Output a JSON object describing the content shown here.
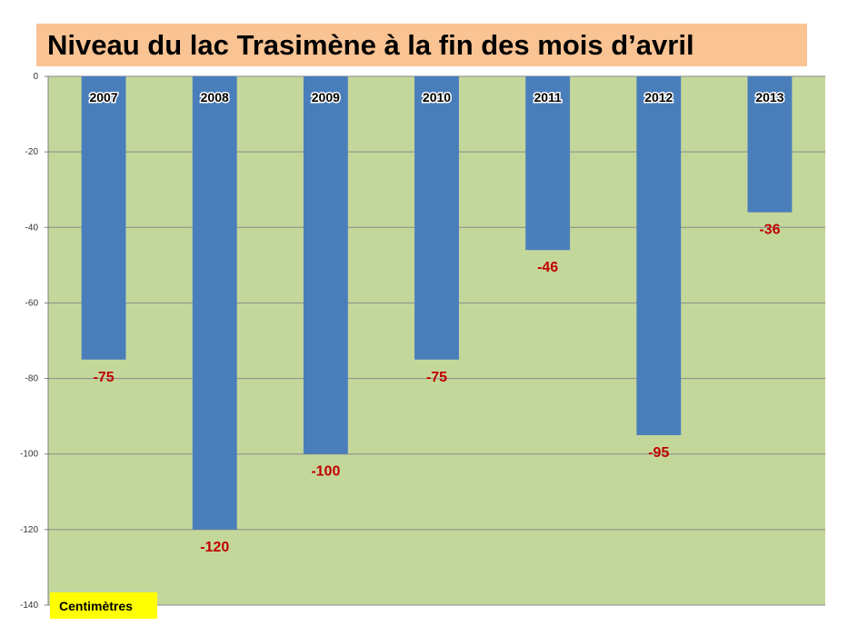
{
  "title": "Niveau du lac Trasimène à la fin des mois d’avril",
  "unit_label": "Centimètres",
  "chart_data": {
    "type": "bar",
    "categories": [
      "2007",
      "2008",
      "2009",
      "2010",
      "2011",
      "2012",
      "2013"
    ],
    "values": [
      -75,
      -120,
      -100,
      -75,
      -46,
      -95,
      -36
    ],
    "value_labels": [
      "-75",
      "-120",
      "-100",
      "-75",
      "-46",
      "-95",
      "-36"
    ],
    "ylim": [
      -140,
      0
    ],
    "yticks": [
      0,
      -20,
      -40,
      -60,
      -80,
      -100,
      -120,
      -140
    ],
    "grid": true,
    "colors": {
      "bar": "#4a7ebb",
      "plot_background": "#c4d79b",
      "value_label": "#c00000",
      "title_background": "#f9c393",
      "unit_background": "#ffff00"
    }
  }
}
